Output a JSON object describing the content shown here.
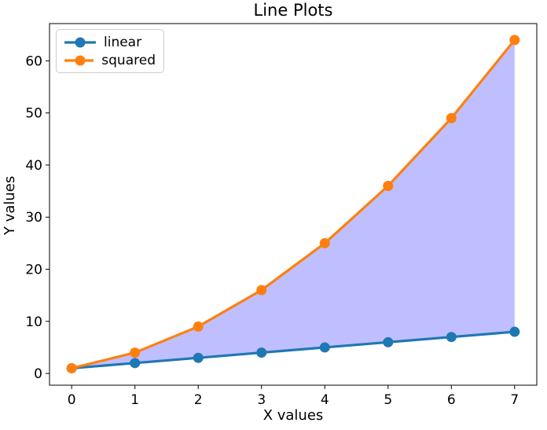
{
  "chart_data": {
    "type": "line",
    "title": "Line Plots",
    "xlabel": "X values",
    "ylabel": "Y values",
    "x": [
      0,
      1,
      2,
      3,
      4,
      5,
      6,
      7
    ],
    "series": [
      {
        "name": "linear",
        "values": [
          1,
          2,
          3,
          4,
          5,
          6,
          7,
          8
        ],
        "color": "#1f77b4"
      },
      {
        "name": "squared",
        "values": [
          1,
          4,
          9,
          16,
          25,
          36,
          49,
          64
        ],
        "color": "#ff7f0e"
      }
    ],
    "fill_between": {
      "lower": "linear",
      "upper": "squared",
      "color": "#0000ff",
      "opacity": 0.25
    },
    "xticks": [
      0,
      1,
      2,
      3,
      4,
      5,
      6,
      7
    ],
    "yticks": [
      0,
      10,
      20,
      30,
      40,
      50,
      60
    ],
    "xlim": [
      -0.35,
      7.35
    ],
    "ylim": [
      -2.25,
      67.15
    ],
    "grid": false,
    "legend": {
      "position": "upper left",
      "entries": [
        "linear",
        "squared"
      ]
    },
    "styles": {
      "spine_color": "#000000",
      "tick_color": "#000000",
      "text_color": "#000000",
      "line_width": 3.2,
      "marker_radius": 6.5
    }
  }
}
